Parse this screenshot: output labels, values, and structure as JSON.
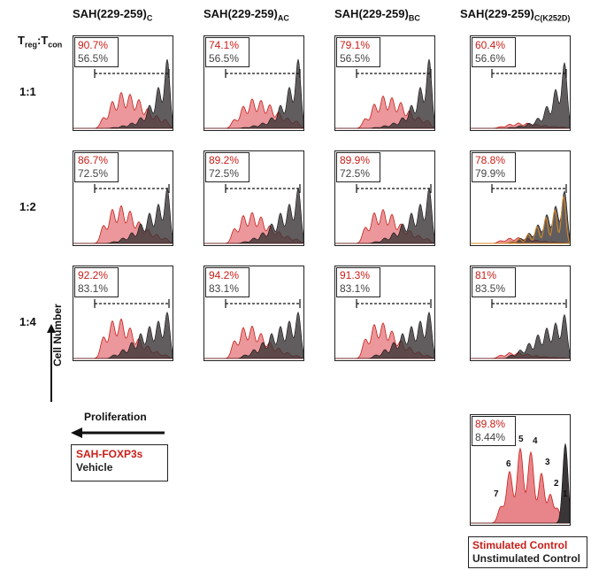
{
  "header": {
    "row_axis": {
      "main": "T",
      "sub1": "reg",
      "sep": ":",
      "main2": "T",
      "sub2": "con"
    },
    "columns": [
      {
        "main": "SAH(229-259)",
        "sub": "C"
      },
      {
        "main": "SAH(229-259)",
        "sub": "AC"
      },
      {
        "main": "SAH(229-259)",
        "sub": "BC"
      },
      {
        "main": "SAH(229-259)",
        "sub": "C(K252D)"
      }
    ],
    "rows": [
      "1:1",
      "1:2",
      "1:4"
    ]
  },
  "axis_labels": {
    "y": "Cell Number",
    "x": "Proliferation"
  },
  "legend_left": {
    "treated": "SAH-FOXP3s",
    "vehicle": "Vehicle"
  },
  "legend_bottom": {
    "stimulated": "Stimulated Control",
    "unstimulated": "Unstimulated Control"
  },
  "colors": {
    "treated": "#c8201a",
    "vehicle": "#3a3536",
    "control_stim": "#e8858a",
    "k252d_overlay": "#d98a2a"
  },
  "chart_data": {
    "type": "histogram-grid",
    "panels": [
      {
        "row": "1:1",
        "column": 0,
        "treated_pct": "90.7%",
        "vehicle_pct": "56.5%"
      },
      {
        "row": "1:1",
        "column": 1,
        "treated_pct": "74.1%",
        "vehicle_pct": "56.5%"
      },
      {
        "row": "1:1",
        "column": 2,
        "treated_pct": "79.1%",
        "vehicle_pct": "56.5%"
      },
      {
        "row": "1:1",
        "column": 3,
        "treated_pct": "60.4%",
        "vehicle_pct": "56.6%"
      },
      {
        "row": "1:2",
        "column": 0,
        "treated_pct": "86.7%",
        "vehicle_pct": "72.5%"
      },
      {
        "row": "1:2",
        "column": 1,
        "treated_pct": "89.2%",
        "vehicle_pct": "72.5%"
      },
      {
        "row": "1:2",
        "column": 2,
        "treated_pct": "89.9%",
        "vehicle_pct": "72.5%"
      },
      {
        "row": "1:2",
        "column": 3,
        "treated_pct": "78.8%",
        "vehicle_pct": "79.9%"
      },
      {
        "row": "1:4",
        "column": 0,
        "treated_pct": "92.2%",
        "vehicle_pct": "83.1%"
      },
      {
        "row": "1:4",
        "column": 1,
        "treated_pct": "94.2%",
        "vehicle_pct": "83.1%"
      },
      {
        "row": "1:4",
        "column": 2,
        "treated_pct": "91.3%",
        "vehicle_pct": "83.1%"
      },
      {
        "row": "1:4",
        "column": 3,
        "treated_pct": "81%",
        "vehicle_pct": "83.5%"
      }
    ],
    "control_panel": {
      "stimulated_pct": "89.8%",
      "unstimulated_pct": "8.44%",
      "peak_labels": [
        "7",
        "6",
        "5",
        "4",
        "3",
        "2",
        "1"
      ]
    }
  }
}
